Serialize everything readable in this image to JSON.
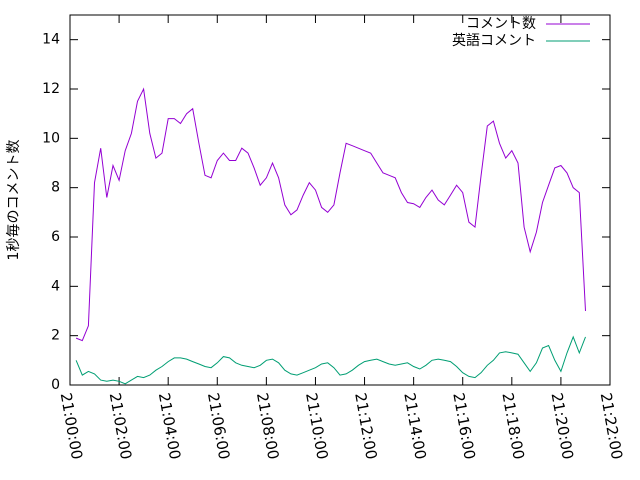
{
  "chart_data": {
    "type": "line",
    "y_label": "1秒毎のコメント数",
    "x": [
      "21:00:15",
      "21:00:30",
      "21:00:45",
      "21:01:00",
      "21:01:15",
      "21:01:30",
      "21:01:45",
      "21:02:00",
      "21:02:15",
      "21:02:30",
      "21:02:45",
      "21:03:00",
      "21:03:15",
      "21:03:30",
      "21:03:45",
      "21:04:00",
      "21:04:15",
      "21:04:30",
      "21:04:45",
      "21:05:00",
      "21:05:15",
      "21:05:30",
      "21:05:45",
      "21:06:00",
      "21:06:15",
      "21:06:30",
      "21:06:45",
      "21:07:00",
      "21:07:15",
      "21:07:30",
      "21:07:45",
      "21:08:00",
      "21:08:15",
      "21:08:30",
      "21:08:45",
      "21:09:00",
      "21:09:15",
      "21:09:30",
      "21:09:45",
      "21:10:00",
      "21:10:15",
      "21:10:30",
      "21:10:45",
      "21:11:00",
      "21:11:15",
      "21:11:30",
      "21:11:45",
      "21:12:00",
      "21:12:15",
      "21:12:30",
      "21:12:45",
      "21:13:00",
      "21:13:15",
      "21:13:30",
      "21:13:45",
      "21:14:00",
      "21:14:15",
      "21:14:30",
      "21:14:45",
      "21:15:00",
      "21:15:15",
      "21:15:30",
      "21:15:45",
      "21:16:00",
      "21:16:15",
      "21:16:30",
      "21:16:45",
      "21:17:00",
      "21:17:15",
      "21:17:30",
      "21:17:45",
      "21:18:00",
      "21:18:15",
      "21:18:30",
      "21:18:45",
      "21:19:00",
      "21:19:15",
      "21:19:30",
      "21:19:45",
      "21:20:00",
      "21:20:15",
      "21:20:30",
      "21:20:45",
      "21:21:00"
    ],
    "series": [
      {
        "name": "コメント数",
        "color": "#9400d3",
        "values": [
          1.9,
          1.8,
          2.4,
          8.2,
          9.6,
          7.6,
          8.9,
          8.3,
          9.5,
          10.2,
          11.5,
          12.0,
          10.2,
          9.2,
          9.4,
          10.8,
          10.8,
          10.6,
          11.0,
          11.2,
          9.8,
          8.5,
          8.4,
          9.1,
          9.4,
          9.1,
          9.1,
          9.6,
          9.4,
          8.8,
          8.1,
          8.4,
          9.0,
          8.4,
          7.3,
          6.9,
          7.1,
          7.7,
          8.2,
          7.9,
          7.2,
          7.0,
          7.3,
          8.6,
          9.8,
          9.7,
          9.6,
          9.5,
          9.4,
          9.0,
          8.6,
          8.5,
          8.4,
          7.8,
          7.4,
          7.35,
          7.2,
          7.6,
          7.9,
          7.5,
          7.3,
          7.7,
          8.1,
          7.8,
          6.6,
          6.4,
          8.5,
          10.5,
          10.7,
          9.8,
          9.2,
          9.5,
          9.0,
          6.4,
          5.4,
          6.2,
          7.4,
          8.1,
          8.8,
          8.9,
          8.6,
          8.0,
          7.8,
          3.0
        ]
      },
      {
        "name": "英語コメント",
        "color": "#009e73",
        "values": [
          1.0,
          0.4,
          0.55,
          0.45,
          0.2,
          0.15,
          0.2,
          0.15,
          0.05,
          0.2,
          0.35,
          0.3,
          0.4,
          0.6,
          0.75,
          0.95,
          1.1,
          1.1,
          1.05,
          0.95,
          0.85,
          0.75,
          0.7,
          0.9,
          1.15,
          1.1,
          0.9,
          0.8,
          0.75,
          0.7,
          0.8,
          1.0,
          1.05,
          0.9,
          0.6,
          0.45,
          0.4,
          0.5,
          0.6,
          0.7,
          0.85,
          0.9,
          0.7,
          0.4,
          0.45,
          0.6,
          0.8,
          0.95,
          1.0,
          1.05,
          0.95,
          0.85,
          0.8,
          0.85,
          0.9,
          0.75,
          0.65,
          0.8,
          1.0,
          1.05,
          1.0,
          0.95,
          0.75,
          0.5,
          0.35,
          0.3,
          0.5,
          0.8,
          1.0,
          1.3,
          1.35,
          1.3,
          1.25,
          0.9,
          0.55,
          0.9,
          1.5,
          1.6,
          1.0,
          0.55,
          1.3,
          1.95,
          1.3,
          1.95
        ]
      }
    ],
    "xlim": [
      "21:00:00",
      "21:22:00"
    ],
    "xticks": [
      "21:00:00",
      "21:02:00",
      "21:04:00",
      "21:06:00",
      "21:08:00",
      "21:10:00",
      "21:12:00",
      "21:14:00",
      "21:16:00",
      "21:18:00",
      "21:20:00",
      "21:22:00"
    ],
    "ylim": [
      0,
      15
    ],
    "yticks": [
      0,
      2,
      4,
      6,
      8,
      10,
      12,
      14
    ],
    "legend": "top-right"
  }
}
